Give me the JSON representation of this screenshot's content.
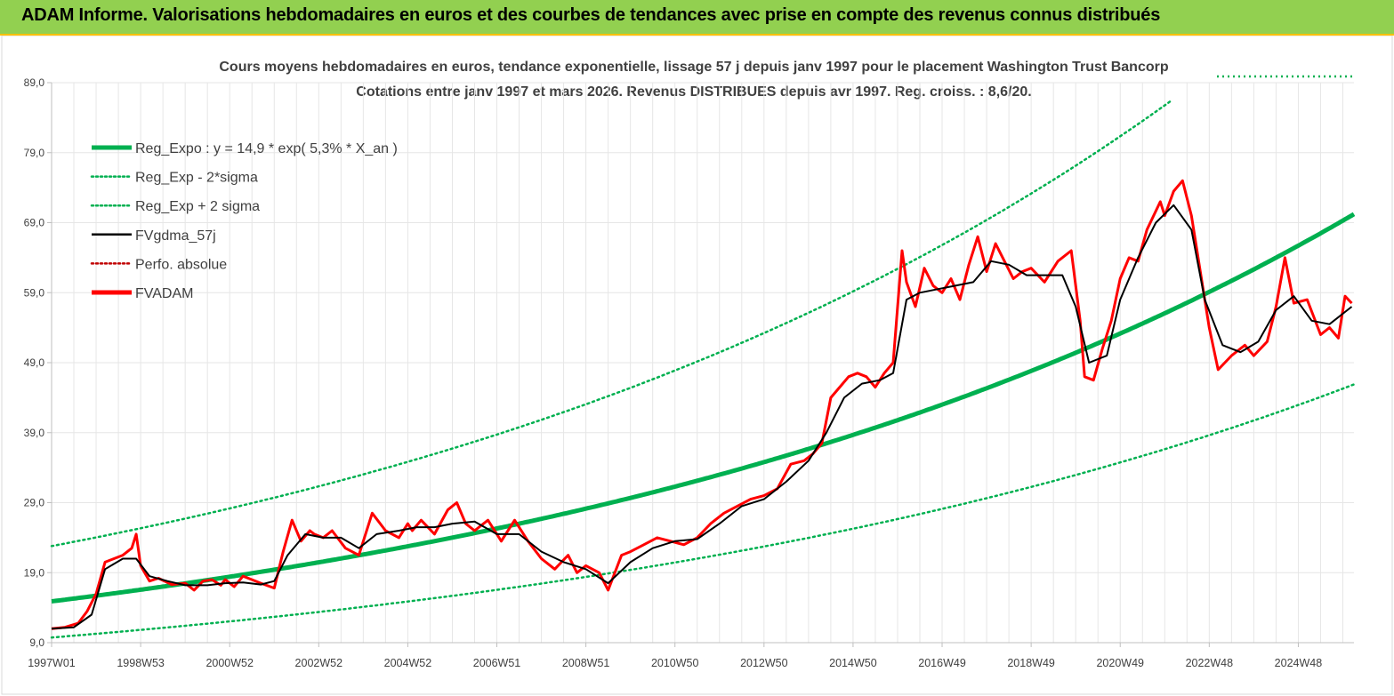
{
  "header": {
    "title": "ADAM Informe. Valorisations hebdomadaires en euros et des courbes de tendances avec prise en compte des revenus connus distribués"
  },
  "chart_data": {
    "type": "line",
    "title_line1": "Cours moyens hebdomadaires en euros, tendance exponentielle, lissage 57 j depuis janv 1997  pour le placement Washington Trust Bancorp",
    "title_line2": "Cotations entre janv 1997 et mars 2026. Revenus DISTRIBUES depuis avr 1997. Reg. croiss. : 8,6/20.",
    "y_ticks": [
      "89,0",
      "79,0",
      "69,0",
      "59,0",
      "49,0",
      "39,0",
      "29,0",
      "19,0",
      "9,0"
    ],
    "ylim": [
      9,
      89
    ],
    "x_ticks": [
      "1997W01",
      "1998W53",
      "2000W52",
      "2002W52",
      "2004W52",
      "2006W51",
      "2008W51",
      "2010W50",
      "2012W50",
      "2014W50",
      "2016W49",
      "2018W49",
      "2020W49",
      "2022W48",
      "2024W48"
    ],
    "xlim": [
      1997.0,
      2026.25
    ],
    "grid": true,
    "legend_placement": "top-left",
    "legend": [
      {
        "name": "Reg_Expo : y = 14,9 * exp( 5,3% *  X_an )",
        "color": "#00b050",
        "style": "solid-thick"
      },
      {
        "name": "Reg_Exp - 2*sigma",
        "color": "#00b050",
        "style": "dotted"
      },
      {
        "name": "Reg_Exp + 2 sigma",
        "color": "#00b050",
        "style": "dotted"
      },
      {
        "name": "FVgdma_57j",
        "color": "#000000",
        "style": "solid"
      },
      {
        "name": "Perfo. absolue",
        "color": "#c00000",
        "style": "dotted"
      },
      {
        "name": "FVADAM",
        "color": "#ff0000",
        "style": "solid-thick"
      }
    ],
    "regression": {
      "a": 14.9,
      "rate": 0.053,
      "start_year": 1997.0,
      "sigma_factor": 1.53
    },
    "series": [
      {
        "name": "FVADAM",
        "color": "#ff0000",
        "x": [
          1997.0,
          1997.3,
          1997.6,
          1997.8,
          1998.0,
          1998.2,
          1998.4,
          1998.6,
          1998.8,
          1998.9,
          1999.0,
          1999.2,
          1999.4,
          1999.7,
          2000.0,
          2000.2,
          2000.4,
          2000.6,
          2000.8,
          2000.9,
          2001.1,
          2001.3,
          2001.5,
          2001.7,
          2002.0,
          2002.2,
          2002.4,
          2002.6,
          2002.8,
          2002.9,
          2003.1,
          2003.3,
          2003.6,
          2003.9,
          2004.2,
          2004.5,
          2004.8,
          2005.0,
          2005.1,
          2005.3,
          2005.6,
          2005.9,
          2006.1,
          2006.3,
          2006.5,
          2006.8,
          2007.1,
          2007.4,
          2007.7,
          2008.0,
          2008.3,
          2008.6,
          2008.8,
          2009.0,
          2009.3,
          2009.5,
          2009.8,
          2010.0,
          2010.3,
          2010.6,
          2010.9,
          2011.2,
          2011.5,
          2011.8,
          2012.1,
          2012.4,
          2012.7,
          2013.0,
          2013.3,
          2013.6,
          2013.9,
          2014.1,
          2014.3,
          2014.5,
          2014.7,
          2014.9,
          2015.1,
          2015.3,
          2015.5,
          2015.7,
          2015.9,
          2016.1,
          2016.2,
          2016.4,
          2016.6,
          2016.8,
          2017.0,
          2017.2,
          2017.4,
          2017.6,
          2017.8,
          2018.0,
          2018.2,
          2018.4,
          2018.6,
          2018.8,
          2019.0,
          2019.3,
          2019.6,
          2019.9,
          2020.1,
          2020.2,
          2020.4,
          2020.6,
          2020.8,
          2021.0,
          2021.2,
          2021.4,
          2021.6,
          2021.9,
          2022.0,
          2022.2,
          2022.4,
          2022.6,
          2022.8,
          2023.0,
          2023.2,
          2023.5,
          2023.8,
          2024.0,
          2024.3,
          2024.5,
          2024.7,
          2024.9,
          2025.2,
          2025.5,
          2025.7,
          2025.9,
          2026.05,
          2026.2
        ],
        "values": [
          11.0,
          11.2,
          11.8,
          13.5,
          16.0,
          20.5,
          21.0,
          21.5,
          22.5,
          24.5,
          20.0,
          17.8,
          18.2,
          17.3,
          17.5,
          16.5,
          17.8,
          18.0,
          17.2,
          18.0,
          17.0,
          18.5,
          18.0,
          17.5,
          16.8,
          22.0,
          26.5,
          23.5,
          25.0,
          24.5,
          24.0,
          25.0,
          22.5,
          21.5,
          27.5,
          25.0,
          24.0,
          26.0,
          25.0,
          26.5,
          24.5,
          28.0,
          29.0,
          26.0,
          25.0,
          26.5,
          23.5,
          26.5,
          23.5,
          21.0,
          19.5,
          21.5,
          19.0,
          20.0,
          19.0,
          16.5,
          21.5,
          22.0,
          23.0,
          24.0,
          23.5,
          23.0,
          24.0,
          26.0,
          27.5,
          28.5,
          29.5,
          30.0,
          31.0,
          34.5,
          35.0,
          36.0,
          37.5,
          44.0,
          45.5,
          47.0,
          47.5,
          47.0,
          45.5,
          47.5,
          49.0,
          65.0,
          60.5,
          57.0,
          62.5,
          60.0,
          59.0,
          61.0,
          58.0,
          63.0,
          67.0,
          62.0,
          66.0,
          63.5,
          61.0,
          62.0,
          62.5,
          60.5,
          63.5,
          65.0,
          55.0,
          47.0,
          46.5,
          51.0,
          55.0,
          61.0,
          64.0,
          63.5,
          68.0,
          72.0,
          70.0,
          73.5,
          75.0,
          70.0,
          62.0,
          54.0,
          48.0,
          50.0,
          51.5,
          50.0,
          52.0,
          57.0,
          64.0,
          57.5,
          58.0,
          53.0,
          54.0,
          52.5,
          58.5,
          57.5
        ]
      },
      {
        "name": "FVgdma_57j",
        "color": "#000000",
        "x": [
          1997.0,
          1997.5,
          1997.9,
          1998.2,
          1998.6,
          1998.9,
          1999.2,
          1999.6,
          2000.0,
          2000.5,
          2000.9,
          2001.3,
          2001.7,
          2002.0,
          2002.3,
          2002.7,
          2003.1,
          2003.5,
          2003.9,
          2004.3,
          2004.8,
          2005.2,
          2005.6,
          2006.0,
          2006.5,
          2007.0,
          2007.5,
          2008.0,
          2008.5,
          2009.0,
          2009.5,
          2010.0,
          2010.5,
          2011.0,
          2011.5,
          2012.0,
          2012.5,
          2013.0,
          2013.5,
          2014.0,
          2014.4,
          2014.8,
          2015.2,
          2015.6,
          2015.9,
          2016.2,
          2016.5,
          2016.9,
          2017.3,
          2017.7,
          2018.1,
          2018.5,
          2018.9,
          2019.3,
          2019.7,
          2020.0,
          2020.3,
          2020.7,
          2021.0,
          2021.4,
          2021.8,
          2022.2,
          2022.6,
          2022.9,
          2023.3,
          2023.7,
          2024.1,
          2024.5,
          2024.9,
          2025.3,
          2025.7,
          2026.2
        ],
        "values": [
          11.0,
          11.2,
          13.0,
          19.5,
          21.0,
          21.0,
          18.5,
          17.8,
          17.2,
          17.2,
          17.5,
          17.6,
          17.3,
          17.8,
          21.5,
          24.5,
          24.0,
          24.0,
          22.5,
          24.5,
          25.0,
          25.5,
          25.5,
          26.0,
          26.3,
          24.5,
          24.5,
          22.0,
          20.5,
          19.5,
          17.5,
          20.5,
          22.5,
          23.5,
          23.8,
          26.0,
          28.5,
          29.5,
          32.0,
          35.0,
          39.0,
          44.0,
          46.0,
          46.5,
          47.5,
          58.0,
          59.0,
          59.5,
          60.0,
          60.5,
          63.5,
          63.0,
          61.5,
          61.5,
          61.5,
          57.0,
          49.0,
          50.0,
          58.0,
          64.0,
          69.0,
          71.5,
          68.0,
          58.0,
          51.5,
          50.5,
          52.0,
          56.5,
          58.5,
          55.0,
          54.5,
          57.0
        ]
      }
    ]
  }
}
